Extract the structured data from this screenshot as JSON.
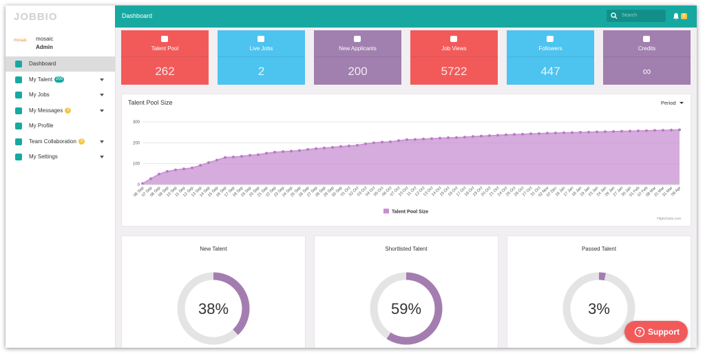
{
  "brand": "JOBBIO",
  "user": {
    "logo": "mosaic",
    "name": "mosaic",
    "role": "Admin"
  },
  "nav": [
    {
      "label": "Dashboard"
    },
    {
      "label": "My Talent",
      "badge": "200"
    },
    {
      "label": "My Jobs"
    },
    {
      "label": "My Messages",
      "badge": "3"
    },
    {
      "label": "My Profile"
    },
    {
      "label": "Team Collaboration",
      "badge": "3"
    },
    {
      "label": "My Settings"
    }
  ],
  "header": {
    "title": "Dashboard",
    "search_placeholder": "Search",
    "notifications": "6"
  },
  "stats": [
    {
      "label": "Talent Pool",
      "value": 262,
      "color": "#f25a5a"
    },
    {
      "label": "Live Jobs",
      "value": 2,
      "color": "#4dc3ef"
    },
    {
      "label": "New Applicants",
      "value": 200,
      "color": "#a17fae"
    },
    {
      "label": "Job Views",
      "value": 5722,
      "color": "#f25a5a"
    },
    {
      "label": "Followers",
      "value": 447,
      "color": "#4dc3ef"
    },
    {
      "label": "Credits",
      "value": "∞",
      "color": "#a17fae"
    }
  ],
  "talent_chart": {
    "type": "area",
    "title": "Talent Pool Size",
    "period": "Period",
    "credit": "Highcharts.com",
    "series_name": "Talent Pool Size",
    "color": "#c88fd2",
    "ylim": [
      0,
      300
    ],
    "yticks": [
      0,
      100,
      200,
      300
    ],
    "grid": true,
    "categories": [
      "06 Sep",
      "07 Sep",
      "08 Sep",
      "09 Sep",
      "10 Sep",
      "11 Sep",
      "12 Sep",
      "13 Sep",
      "14 Sep",
      "15 Sep",
      "16 Sep",
      "17 Sep",
      "18 Sep",
      "19 Sep",
      "20 Sep",
      "21 Sep",
      "22 Sep",
      "23 Sep",
      "24 Sep",
      "25 Sep",
      "26 Sep",
      "27 Sep",
      "28 Sep",
      "29 Sep",
      "30 Sep",
      "01 Oct",
      "02 Oct",
      "03 Oct",
      "04 Oct",
      "05 Oct",
      "06 Oct",
      "07 Oct",
      "10 Oct",
      "11 Oct",
      "12 Oct",
      "13 Oct",
      "14 Oct",
      "15 Oct",
      "16 Oct",
      "17 Oct",
      "18 Oct",
      "19 Oct",
      "20 Oct",
      "21 Oct",
      "24 Oct",
      "25 Oct",
      "26 Oct",
      "27 Oct",
      "31 Oct",
      "02 Nov",
      "07 Dec",
      "16 Jan",
      "17 Jan",
      "18 Jan",
      "19 Jan",
      "23 Jan",
      "24 Jan",
      "26 Jan",
      "27 Jan",
      "30 Jan",
      "01 Feb",
      "07 Feb",
      "08 Mar",
      "21 Mar",
      "31 Mar",
      "09 Apr"
    ],
    "values": [
      5,
      28,
      50,
      63,
      70,
      75,
      80,
      92,
      105,
      117,
      130,
      132,
      135,
      140,
      143,
      150,
      155,
      158,
      160,
      163,
      168,
      172,
      175,
      178,
      182,
      185,
      188,
      195,
      200,
      203,
      205,
      210,
      215,
      216,
      218,
      220,
      222,
      224,
      225,
      227,
      230,
      232,
      234,
      236,
      238,
      240,
      241,
      243,
      244,
      246,
      247,
      248,
      249,
      250,
      251,
      252,
      253,
      254,
      255,
      256,
      257,
      258,
      259,
      260,
      261,
      262
    ]
  },
  "donuts": [
    {
      "title": "New Talent",
      "value": 38,
      "label": "38%"
    },
    {
      "title": "Shortlisted Talent",
      "value": 59,
      "label": "59%"
    },
    {
      "title": "Passed Talent",
      "value": 3,
      "label": "3%"
    }
  ],
  "support": "Support"
}
